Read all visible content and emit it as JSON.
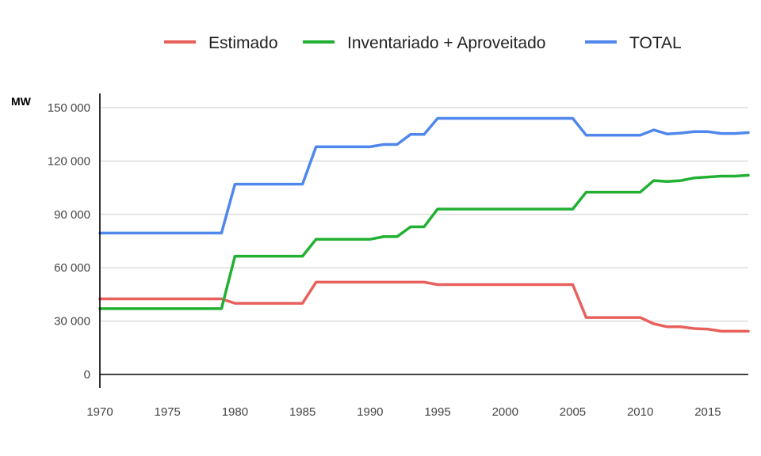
{
  "chart_data": {
    "type": "line",
    "title": "",
    "xlabel": "",
    "ylabel": "MW",
    "xlim": [
      1970,
      2018
    ],
    "ylim": [
      0,
      150000
    ],
    "x_ticks": [
      "1970",
      "1975",
      "1980",
      "1985",
      "1990",
      "1995",
      "2000",
      "2005",
      "2010",
      "2015"
    ],
    "y_ticks": [
      "0",
      "30 000",
      "60 000",
      "90 000",
      "120 000",
      "150 000"
    ],
    "grid": true,
    "legend_position": "top",
    "x": [
      1970,
      1971,
      1972,
      1973,
      1974,
      1975,
      1976,
      1977,
      1978,
      1979,
      1980,
      1981,
      1982,
      1983,
      1984,
      1985,
      1986,
      1987,
      1988,
      1989,
      1990,
      1991,
      1992,
      1993,
      1994,
      1995,
      1996,
      1997,
      1998,
      1999,
      2000,
      2001,
      2002,
      2003,
      2004,
      2005,
      2006,
      2007,
      2008,
      2009,
      2010,
      2011,
      2012,
      2013,
      2014,
      2015,
      2016,
      2017,
      2018
    ],
    "series": [
      {
        "name": "Estimado",
        "color": "#e8605b",
        "values": [
          42500,
          42500,
          42500,
          42500,
          42500,
          42500,
          42500,
          42500,
          42500,
          42500,
          40000,
          40000,
          40000,
          40000,
          40000,
          40000,
          51900,
          51900,
          51900,
          51900,
          51900,
          51900,
          51900,
          51900,
          51900,
          50500,
          50500,
          50500,
          50500,
          50500,
          50500,
          50500,
          50500,
          50500,
          50500,
          50500,
          32000,
          32000,
          32000,
          32000,
          32000,
          28500,
          26800,
          26800,
          25800,
          25500,
          24300,
          24300,
          24300
        ]
      },
      {
        "name": "Inventariado + Aproveitado",
        "color": "#22b033",
        "values": [
          37000,
          37000,
          37000,
          37000,
          37000,
          37000,
          37000,
          37000,
          37000,
          37000,
          66500,
          66500,
          66500,
          66500,
          66500,
          66500,
          76000,
          76000,
          76000,
          76000,
          76000,
          77500,
          77500,
          83000,
          83000,
          93000,
          93000,
          93000,
          93000,
          93000,
          93000,
          93000,
          93000,
          93000,
          93000,
          93000,
          102500,
          102500,
          102500,
          102500,
          102500,
          109000,
          108500,
          109000,
          110500,
          111000,
          111500,
          111500,
          112000
        ]
      },
      {
        "name": "TOTAL",
        "color": "#5087ec",
        "values": [
          79500,
          79500,
          79500,
          79500,
          79500,
          79500,
          79500,
          79500,
          79500,
          79500,
          107000,
          107000,
          107000,
          107000,
          107000,
          107000,
          128000,
          128000,
          128000,
          128000,
          128000,
          129300,
          129300,
          135000,
          135000,
          144000,
          144000,
          144000,
          144000,
          144000,
          144000,
          144000,
          144000,
          144000,
          144000,
          144000,
          134500,
          134500,
          134500,
          134500,
          134500,
          137500,
          135200,
          135700,
          136500,
          136500,
          135500,
          135500,
          136000
        ]
      }
    ]
  }
}
